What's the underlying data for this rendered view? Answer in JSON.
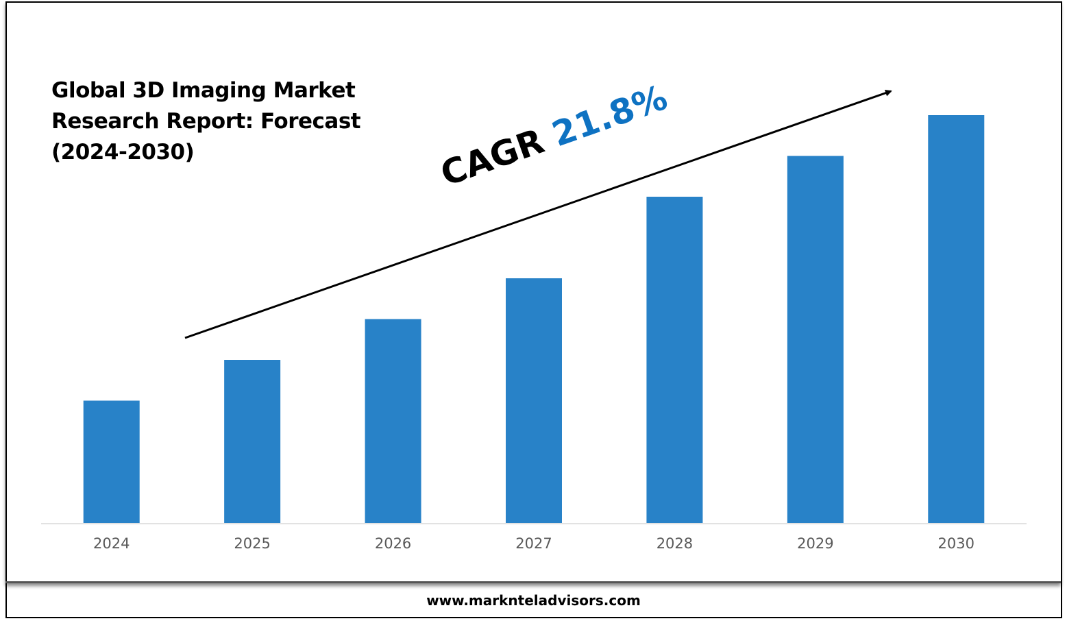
{
  "chart_data": {
    "type": "bar",
    "title": "Global 3D Imaging Market Research Report: Forecast (2024-2030)",
    "title_lines": [
      "Global 3D Imaging Market",
      "Research Report: Forecast",
      "(2024-2030)"
    ],
    "categories": [
      "2024",
      "2025",
      "2026",
      "2027",
      "2028",
      "2029",
      "2030"
    ],
    "values": [
      30,
      40,
      50,
      60,
      80,
      90,
      100
    ],
    "value_units": "relative (no y-axis shown)",
    "xlabel": "",
    "ylabel": "",
    "ylim": [
      0,
      100
    ],
    "grid": false,
    "bar_color": "#2882c8",
    "annotation": {
      "label": "CAGR",
      "value": "21.8%",
      "value_color": "#0e72c2"
    }
  },
  "footer": {
    "website": "www.marknteladvisors.com"
  }
}
